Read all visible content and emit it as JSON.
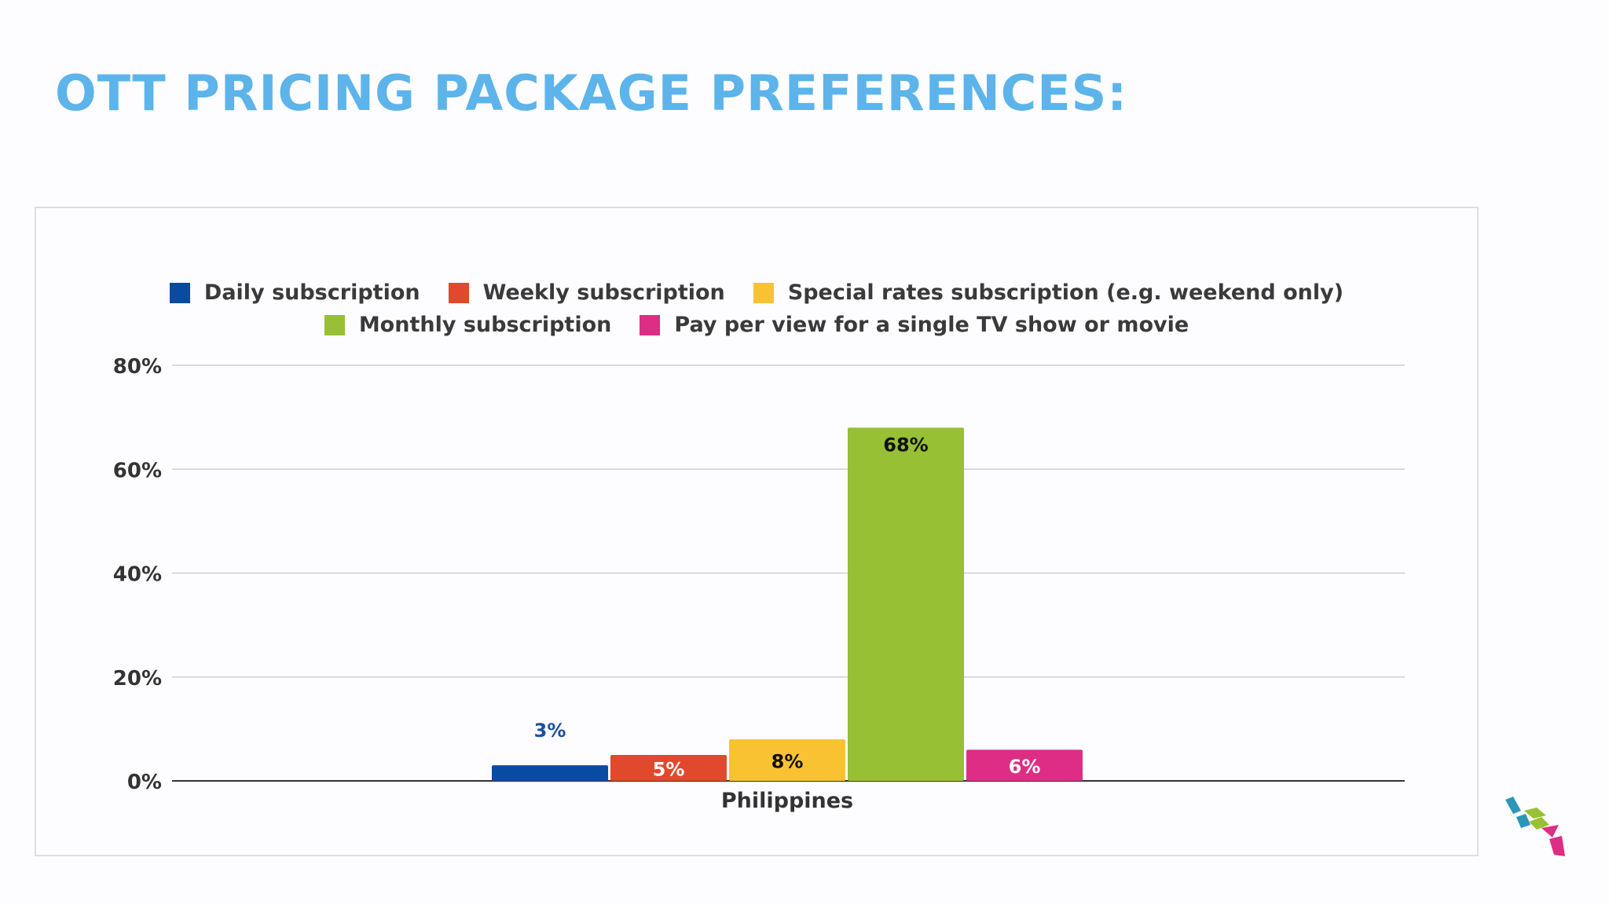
{
  "slide": {
    "title": "OTT PRICING PACKAGE PREFERENCES:"
  },
  "chart_data": {
    "type": "bar",
    "categories": [
      "Philippines"
    ],
    "series": [
      {
        "name": "Daily subscription",
        "values": [
          3
        ],
        "label": "3%",
        "color": "#0a4aa3",
        "label_color": "#1a4fa0"
      },
      {
        "name": "Weekly subscription",
        "values": [
          5
        ],
        "label": "5%",
        "color": "#e0492b",
        "label_color": "#ffffff"
      },
      {
        "name": "Special rates subscription (e.g. weekend only)",
        "values": [
          8
        ],
        "label": "8%",
        "color": "#f9c233",
        "label_color": "#111111"
      },
      {
        "name": "Monthly subscription",
        "values": [
          68
        ],
        "label": "68%",
        "color": "#97c034",
        "label_color": "#111111"
      },
      {
        "name": "Pay per view for a single TV show or movie",
        "values": [
          6
        ],
        "label": "6%",
        "color": "#dd2d85",
        "label_color": "#ffffff"
      }
    ],
    "y_ticks": [
      "0%",
      "20%",
      "40%",
      "60%",
      "80%"
    ],
    "ylim": [
      0,
      80
    ],
    "legend": {
      "position": "top",
      "rows": [
        [
          0,
          1,
          2
        ],
        [
          3,
          4
        ]
      ]
    },
    "grid": true,
    "xlabel": "",
    "ylabel": ""
  },
  "logo": {
    "name": "brand-logo-icon",
    "colors": [
      "#2a97b8",
      "#97c034",
      "#dd2d85"
    ]
  }
}
